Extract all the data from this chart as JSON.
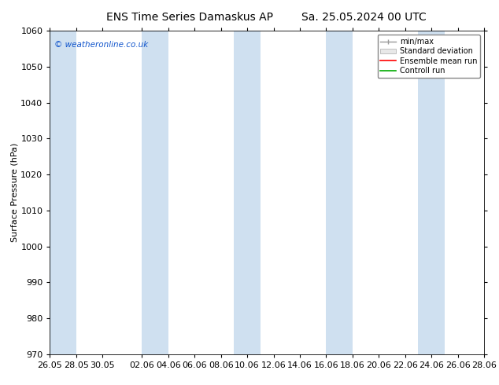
{
  "title_left": "ENS Time Series Damaskus AP",
  "title_right": "Sa. 25.05.2024 00 UTC",
  "ylabel": "Surface Pressure (hPa)",
  "ylim": [
    970,
    1060
  ],
  "yticks": [
    970,
    980,
    990,
    1000,
    1010,
    1020,
    1030,
    1040,
    1050,
    1060
  ],
  "xtick_labels": [
    "26.05",
    "28.05",
    "30.05",
    "02.06",
    "04.06",
    "06.06",
    "08.06",
    "10.06",
    "12.06",
    "14.06",
    "16.06",
    "18.06",
    "20.06",
    "22.06",
    "24.06",
    "26.06",
    "28.06"
  ],
  "band_color": "#cfe0f0",
  "watermark": "© weatheronline.co.uk",
  "legend_items": [
    "min/max",
    "Standard deviation",
    "Ensemble mean run",
    "Controll run"
  ],
  "legend_colors_line": [
    "#999999",
    "#cccccc",
    "#ff0000",
    "#00aa00"
  ],
  "bg_color": "#ffffff",
  "title_fontsize": 10,
  "tick_fontsize": 8,
  "ylabel_fontsize": 8
}
